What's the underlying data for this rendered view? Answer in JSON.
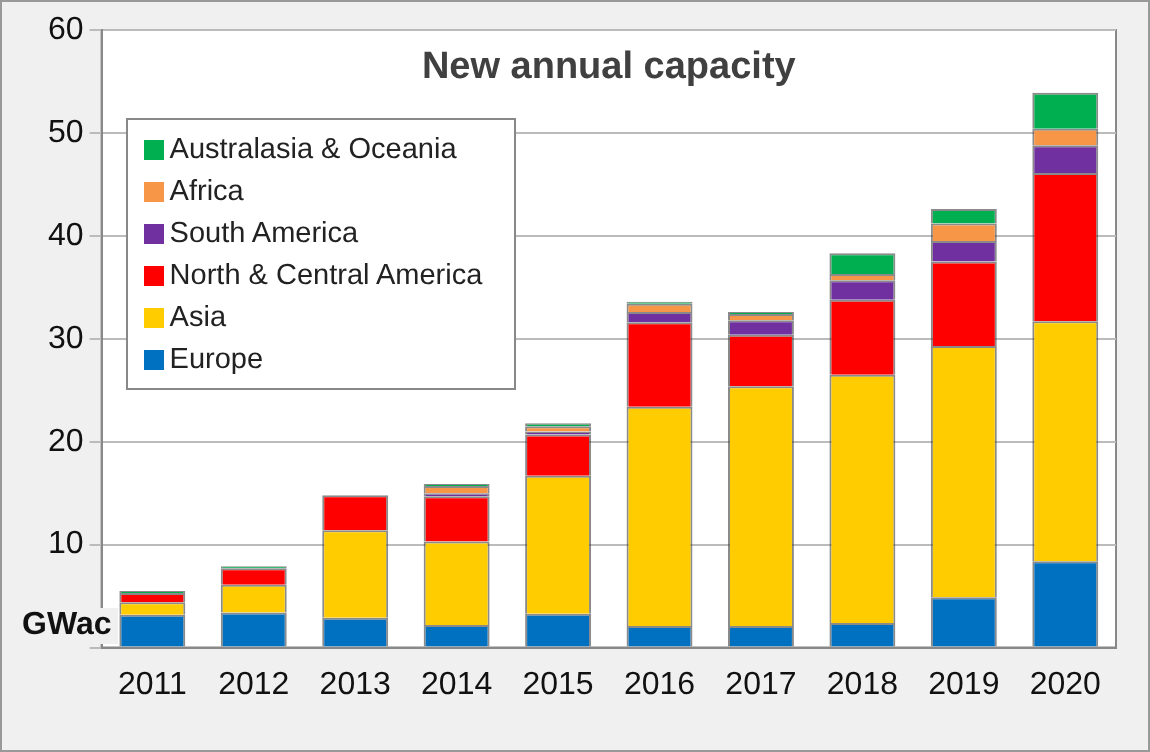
{
  "chart_data": {
    "type": "bar",
    "title": "New annual capacity",
    "ylabel": "GWac",
    "stacked": true,
    "categories": [
      "2011",
      "2012",
      "2013",
      "2014",
      "2015",
      "2016",
      "2017",
      "2018",
      "2019",
      "2020"
    ],
    "series": [
      {
        "name": "Europe",
        "color": "#0070c0",
        "values": [
          3.2,
          3.4,
          2.9,
          2.2,
          3.3,
          2.1,
          2.1,
          2.4,
          4.9,
          8.4
        ]
      },
      {
        "name": "Asia",
        "color": "#ffcc00",
        "values": [
          1.2,
          2.7,
          8.5,
          8.1,
          13.4,
          21.3,
          23.3,
          24.1,
          24.4,
          23.3
        ]
      },
      {
        "name": "North & Central America",
        "color": "#ff0000",
        "values": [
          0.9,
          1.6,
          3.4,
          4.4,
          4.0,
          8.2,
          5.0,
          7.3,
          8.2,
          14.4
        ]
      },
      {
        "name": "South America",
        "color": "#7030a0",
        "values": [
          0,
          0,
          0,
          0.3,
          0.3,
          1.0,
          1.4,
          1.9,
          2.0,
          2.7
        ]
      },
      {
        "name": "Africa",
        "color": "#f79646",
        "values": [
          0,
          0,
          0,
          0.7,
          0.5,
          0.8,
          0.6,
          0.6,
          1.7,
          1.6
        ]
      },
      {
        "name": "Australasia & Oceania",
        "color": "#00b050",
        "values": [
          0.2,
          0.2,
          0,
          0.2,
          0.3,
          0.2,
          0.2,
          2.0,
          1.4,
          3.5
        ]
      }
    ],
    "ylim": [
      0,
      60
    ],
    "yticks": [
      {
        "value": 0,
        "label": null
      },
      10,
      20,
      30,
      40,
      50,
      60
    ],
    "grid": "y",
    "legend": "top left"
  }
}
